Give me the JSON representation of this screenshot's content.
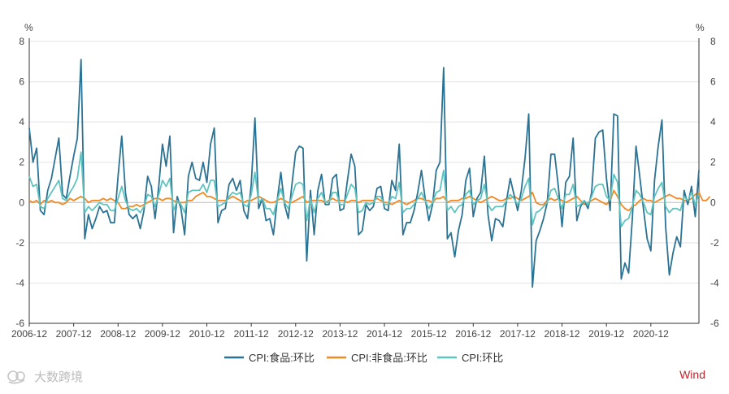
{
  "chart_data": {
    "type": "line",
    "title": "",
    "xlabel": "",
    "ylabel": "",
    "unit_left": "%",
    "unit_right": "%",
    "ylim": [
      -6,
      8
    ],
    "yticks": [
      -6,
      -4,
      -2,
      0,
      2,
      4,
      6,
      8
    ],
    "x_start": "2006-12",
    "x_end": "2021-09",
    "xtick_labels": [
      "2006-12",
      "2007-12",
      "2008-12",
      "2009-12",
      "2010-12",
      "2011-12",
      "2012-12",
      "2013-12",
      "2014-12",
      "2015-12",
      "2016-12",
      "2017-12",
      "2018-12",
      "2019-12",
      "2020-12"
    ],
    "grid": true,
    "legend_position": "bottom",
    "source": "Wind",
    "watermark": "大数跨境",
    "series": [
      {
        "name": "CPI:食品:环比",
        "color": "#2a7394",
        "values": [
          3.7,
          2.0,
          2.7,
          -0.4,
          -0.6,
          0.6,
          1.2,
          2.2,
          3.2,
          0.4,
          0.2,
          1.3,
          2.3,
          3.2,
          7.1,
          -1.8,
          -0.6,
          -1.3,
          -0.8,
          -0.2,
          -0.5,
          -0.4,
          -1.0,
          -1.0,
          1.3,
          3.3,
          0.5,
          -0.6,
          -0.8,
          -0.6,
          -1.3,
          -0.4,
          1.3,
          0.8,
          -0.8,
          0.8,
          2.9,
          1.8,
          3.3,
          -1.5,
          0.3,
          -0.3,
          -1.6,
          1.3,
          2.0,
          1.2,
          1.1,
          2.0,
          1.0,
          2.9,
          3.7,
          -1.0,
          -0.4,
          -0.3,
          0.9,
          1.2,
          0.6,
          1.1,
          -0.4,
          -0.8,
          0.9,
          4.2,
          -0.3,
          0.2,
          -0.9,
          -0.8,
          -1.6,
          0.1,
          1.5,
          -0.1,
          -0.8,
          0.9,
          2.5,
          2.8,
          2.7,
          -2.9,
          0.6,
          -1.6,
          0.6,
          1.4,
          -0.1,
          -0.1,
          1.2,
          1.4,
          -0.4,
          -0.3,
          1.1,
          2.4,
          1.8,
          -1.6,
          -1.4,
          -0.1,
          -0.4,
          -0.2,
          0.7,
          0.8,
          -0.3,
          -0.4,
          1.1,
          0.6,
          2.9,
          -1.6,
          -1.0,
          -1.0,
          -0.4,
          0.5,
          1.6,
          0.2,
          -0.9,
          -0.1,
          1.6,
          2.0,
          6.7,
          -1.8,
          -1.5,
          -2.7,
          -1.4,
          -0.6,
          1.1,
          1.7,
          -0.7,
          0.2,
          0.5,
          2.3,
          -0.6,
          -1.9,
          -0.8,
          -0.9,
          -1.2,
          0.1,
          1.2,
          0.4,
          -0.4,
          0.6,
          2.2,
          4.4,
          -4.2,
          -1.9,
          -1.4,
          -0.8,
          0.0,
          2.4,
          2.4,
          0.8,
          -1.2,
          1.0,
          1.3,
          3.2,
          -0.9,
          -0.2,
          0.1,
          -0.3,
          0.5,
          3.2,
          3.5,
          3.6,
          1.2,
          -0.4,
          4.4,
          4.3,
          -3.8,
          -3.0,
          -3.5,
          -0.8,
          2.8,
          1.3,
          -0.3,
          -1.8,
          -2.4,
          1.1,
          2.8,
          4.1,
          -1.2,
          -3.6,
          -2.5,
          -1.7,
          -2.2,
          0.6,
          -0.1,
          0.8,
          -0.7,
          1.6
        ]
      },
      {
        "name": "CPI:非食品:环比",
        "color": "#f08a24",
        "values": [
          0.1,
          0.0,
          0.1,
          -0.1,
          0.1,
          0.0,
          0.1,
          0.0,
          0.0,
          -0.1,
          0.0,
          0.2,
          0.1,
          0.2,
          0.3,
          0.2,
          0.0,
          0.1,
          0.1,
          0.1,
          0.2,
          0.1,
          0.2,
          0.1,
          0.0,
          -0.3,
          -0.3,
          -0.2,
          -0.2,
          -0.1,
          -0.2,
          -0.1,
          0.0,
          0.1,
          0.2,
          0.2,
          0.1,
          0.2,
          0.2,
          0.1,
          0.0,
          0.0,
          0.0,
          0.1,
          0.1,
          0.3,
          0.4,
          0.5,
          0.3,
          0.3,
          0.2,
          0.1,
          0.1,
          0.1,
          0.2,
          0.3,
          0.2,
          0.1,
          0.0,
          0.1,
          0.1,
          0.2,
          0.3,
          0.2,
          0.1,
          0.0,
          0.0,
          0.1,
          0.2,
          0.1,
          0.0,
          0.0,
          0.1,
          0.2,
          0.3,
          0.0,
          0.1,
          0.1,
          0.1,
          0.1,
          0.0,
          0.1,
          0.2,
          0.1,
          0.1,
          0.1,
          0.0,
          0.1,
          0.1,
          0.0,
          0.1,
          0.1,
          0.1,
          0.1,
          0.2,
          0.1,
          0.0,
          0.0,
          -0.1,
          0.0,
          0.1,
          0.0,
          -0.1,
          0.0,
          0.1,
          0.2,
          0.2,
          0.1,
          0.1,
          0.0,
          0.2,
          0.2,
          0.3,
          0.0,
          0.1,
          0.1,
          0.1,
          0.2,
          0.2,
          0.3,
          0.2,
          0.1,
          0.0,
          0.1,
          0.2,
          0.3,
          0.2,
          0.1,
          0.1,
          0.2,
          0.2,
          0.3,
          0.2,
          0.1,
          0.2,
          0.3,
          0.5,
          0.0,
          -0.1,
          -0.1,
          0.1,
          0.2,
          0.1,
          0.2,
          0.1,
          0.0,
          0.1,
          0.2,
          0.3,
          0.1,
          -0.1,
          0.0,
          0.1,
          0.2,
          0.1,
          0.0,
          -0.1,
          0.1,
          0.6,
          0.3,
          -0.1,
          -0.3,
          -0.4,
          -0.2,
          -0.1,
          0.1,
          0.2,
          0.1,
          0.1,
          0.0,
          0.1,
          0.2,
          0.3,
          0.4,
          0.3,
          0.2,
          0.2,
          0.1,
          0.1,
          0.2,
          0.4,
          0.5,
          0.1,
          0.1,
          0.3
        ]
      },
      {
        "name": "CPI:环比",
        "color": "#5fc4bf",
        "values": [
          1.3,
          0.8,
          0.9,
          -0.2,
          -0.3,
          0.2,
          0.5,
          0.8,
          1.1,
          0.2,
          0.1,
          0.5,
          0.8,
          1.2,
          2.5,
          -0.5,
          -0.2,
          -0.4,
          -0.2,
          0.0,
          -0.1,
          -0.1,
          -0.4,
          -0.4,
          0.2,
          0.8,
          0.1,
          -0.3,
          -0.4,
          -0.3,
          -0.5,
          -0.2,
          0.4,
          0.3,
          -0.2,
          0.4,
          1.1,
          0.8,
          1.2,
          -0.4,
          0.1,
          -0.1,
          -0.5,
          0.5,
          0.6,
          0.6,
          0.6,
          0.9,
          0.5,
          1.1,
          1.1,
          -0.2,
          -0.1,
          0.0,
          0.3,
          0.5,
          0.4,
          0.5,
          -0.1,
          -0.2,
          0.4,
          1.5,
          0.0,
          0.2,
          -0.3,
          -0.3,
          -0.6,
          0.1,
          0.7,
          0.0,
          -0.3,
          0.3,
          0.9,
          1.0,
          0.9,
          -0.9,
          0.2,
          -0.5,
          0.2,
          0.5,
          0.0,
          0.0,
          0.5,
          0.5,
          -0.1,
          -0.1,
          0.4,
          0.9,
          0.7,
          -0.5,
          -0.4,
          0.0,
          -0.1,
          0.0,
          0.3,
          0.3,
          -0.1,
          -0.1,
          0.3,
          0.2,
          1.0,
          -0.5,
          -0.3,
          -0.3,
          -0.1,
          0.2,
          0.5,
          0.1,
          -0.3,
          0.0,
          0.5,
          0.6,
          1.6,
          -0.4,
          -0.2,
          -0.5,
          -0.2,
          -0.1,
          0.4,
          0.6,
          -0.1,
          0.1,
          0.2,
          0.9,
          -0.1,
          -0.4,
          -0.2,
          -0.2,
          -0.2,
          0.1,
          0.4,
          0.2,
          -0.1,
          0.2,
          0.8,
          1.2,
          -1.1,
          -0.5,
          -0.4,
          -0.2,
          0.0,
          0.6,
          0.7,
          0.2,
          -0.3,
          0.4,
          0.4,
          0.9,
          -0.2,
          -0.1,
          0.1,
          -0.1,
          0.3,
          0.8,
          0.9,
          0.9,
          0.3,
          0.1,
          1.4,
          1.0,
          -1.2,
          -0.9,
          -0.8,
          -0.2,
          0.6,
          0.4,
          0.0,
          -0.5,
          -0.6,
          0.3,
          0.7,
          1.0,
          -0.2,
          -0.5,
          -0.3,
          -0.3,
          -0.4,
          0.3,
          0.1,
          0.5,
          -0.1,
          0.4
        ]
      }
    ]
  }
}
